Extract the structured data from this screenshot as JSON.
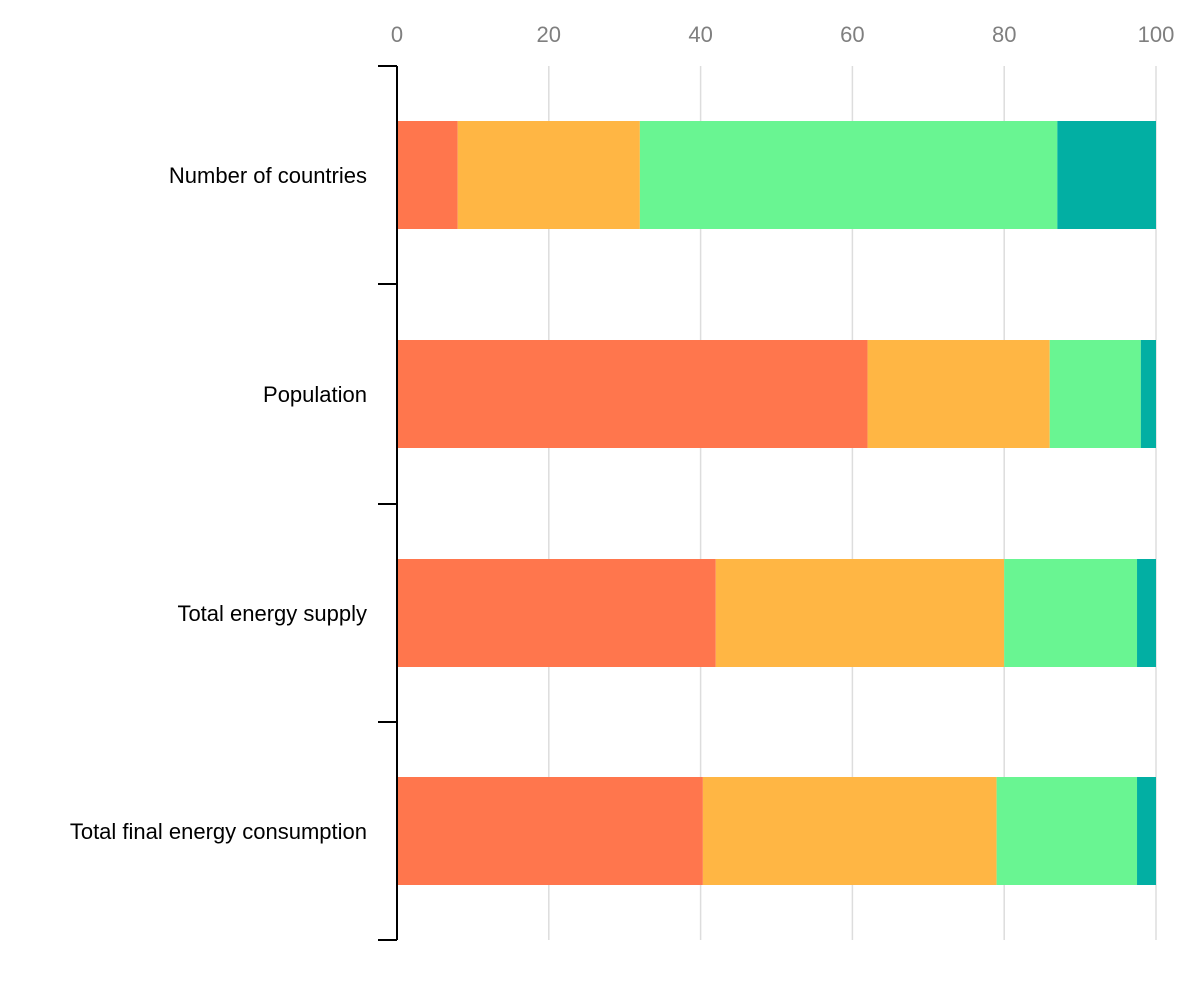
{
  "chart_data": {
    "type": "bar",
    "orientation": "horizontal",
    "stacked": true,
    "title": "",
    "xlabel": "",
    "ylabel": "",
    "xlim": [
      0,
      100
    ],
    "x_ticks": [
      "0",
      "20",
      "40",
      "60",
      "80",
      "100"
    ],
    "x_tick_values": [
      0,
      20,
      40,
      60,
      80,
      100
    ],
    "x_axis_position": "top",
    "grid": true,
    "legend": "none",
    "categories": [
      "Number of countries",
      "Population",
      "Total energy supply",
      "Total final energy consumption"
    ],
    "series": [
      {
        "color": "#ff764d",
        "values": [
          8,
          62,
          42,
          40.3
        ]
      },
      {
        "color": "#ffb644",
        "values": [
          24,
          24,
          38,
          38.7
        ]
      },
      {
        "color": "#69f592",
        "values": [
          55,
          12,
          17.5,
          18.5
        ]
      },
      {
        "color": "#02afa3",
        "values": [
          13,
          2,
          2.5,
          2.5
        ]
      }
    ]
  },
  "colors": {
    "gridline": "#dddddd",
    "axis": "#000000",
    "tick_label": "#7f7f7f",
    "category_label": "#000000"
  }
}
